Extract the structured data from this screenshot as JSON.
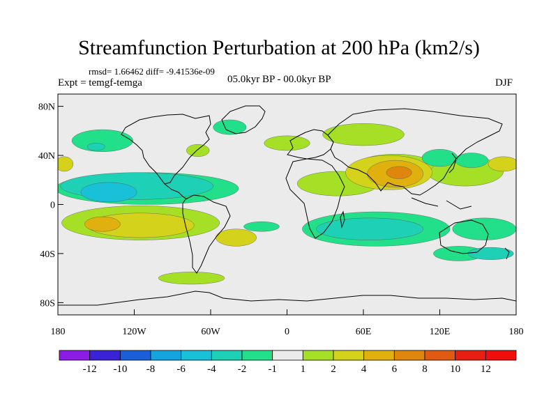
{
  "header": {
    "title": "Streamfunction Perturbation at 200 hPa (km2/s)",
    "stats": "rmsd= 1.66462 diff= -9.41536e-09",
    "experiment": "Expt = temgf-temga",
    "period": "05.0kyr BP - 00.0kyr BP",
    "season": "DJF"
  },
  "axes": {
    "y_ticks": [
      {
        "label": "80N",
        "lat": 80
      },
      {
        "label": "40N",
        "lat": 40
      },
      {
        "label": "0",
        "lat": 0
      },
      {
        "label": "40S",
        "lat": -40
      },
      {
        "label": "80S",
        "lat": -80
      }
    ],
    "x_ticks": [
      {
        "label": "180",
        "lon": -180
      },
      {
        "label": "120W",
        "lon": -120
      },
      {
        "label": "60W",
        "lon": -60
      },
      {
        "label": "0",
        "lon": 0
      },
      {
        "label": "60E",
        "lon": 60
      },
      {
        "label": "120E",
        "lon": 120
      },
      {
        "label": "180",
        "lon": 180
      }
    ]
  },
  "colorbar": {
    "labels": [
      "-12",
      "-10",
      "-8",
      "-6",
      "-4",
      "-2",
      "-1",
      "1",
      "2",
      "4",
      "6",
      "8",
      "10",
      "12"
    ],
    "colors": [
      "#8b1ce6",
      "#3a22d6",
      "#1a5fd8",
      "#14a4e0",
      "#18c0d8",
      "#1dd0b6",
      "#22e08a",
      "#ebebeb",
      "#a6e026",
      "#d4d21a",
      "#e0b00e",
      "#e0860c",
      "#e05a12",
      "#e81e12",
      "#f20d0d"
    ]
  },
  "map_data": {
    "lon_range": [
      -180,
      180
    ],
    "lat_range": [
      -90,
      90
    ],
    "land_color": "#ebebeb",
    "anomaly_regions": [
      {
        "lon": 140,
        "lat": 27,
        "rlon": 30,
        "rlat": 12,
        "color": "#a6e026",
        "value": 2
      },
      {
        "lon": 85,
        "lat": 32,
        "rlon": 30,
        "rlat": 9,
        "color": "#a6e026",
        "value": 2
      },
      {
        "lon": 40,
        "lat": 17,
        "rlon": 32,
        "rlat": 10,
        "color": "#a6e026",
        "value": 2
      },
      {
        "lon": 80,
        "lat": 26,
        "rlon": 34,
        "rlat": 14,
        "color": "#d4d21a",
        "value": 4
      },
      {
        "lon": 85,
        "lat": 25,
        "rlon": 22,
        "rlat": 11,
        "color": "#e0b00e",
        "value": 6
      },
      {
        "lon": 88,
        "lat": 26,
        "rlon": 10,
        "rlat": 5,
        "color": "#e0860c",
        "value": 8
      },
      {
        "lon": 145,
        "lat": 36,
        "rlon": 13,
        "rlat": 6,
        "color": "#22e08a",
        "value": -1
      },
      {
        "lon": 120,
        "lat": 38,
        "rlon": 14,
        "rlat": 7,
        "color": "#22e08a",
        "value": -1
      },
      {
        "lon": 60,
        "lat": 57,
        "rlon": 32,
        "rlat": 9,
        "color": "#a6e026",
        "value": 2
      },
      {
        "lon": 0,
        "lat": 50,
        "rlon": 18,
        "rlat": 6,
        "color": "#a6e026",
        "value": 2
      },
      {
        "lon": -45,
        "lat": 63,
        "rlon": 13,
        "rlat": 6,
        "color": "#22e08a",
        "value": -1
      },
      {
        "lon": -70,
        "lat": 44,
        "rlon": 9,
        "rlat": 5,
        "color": "#a6e026",
        "value": 2
      },
      {
        "lon": -110,
        "lat": 13,
        "rlon": 72,
        "rlat": 13,
        "color": "#22e08a",
        "value": -1
      },
      {
        "lon": -118,
        "lat": 15,
        "rlon": 60,
        "rlat": 11,
        "color": "#1dd0b6",
        "value": -2
      },
      {
        "lon": -140,
        "lat": 10,
        "rlon": 22,
        "rlat": 8,
        "color": "#18c0d8",
        "value": -4
      },
      {
        "lon": -145,
        "lat": 52,
        "rlon": 24,
        "rlat": 9,
        "color": "#22e08a",
        "value": -1
      },
      {
        "lon": -150,
        "lat": 47,
        "rlon": 7,
        "rlat": 3,
        "color": "#1dd0b6",
        "value": -2
      },
      {
        "lon": -115,
        "lat": -15,
        "rlon": 62,
        "rlat": 14,
        "color": "#a6e026",
        "value": 2
      },
      {
        "lon": -115,
        "lat": -17,
        "rlon": 42,
        "rlat": 10,
        "color": "#d4d21a",
        "value": 4
      },
      {
        "lon": -145,
        "lat": -16,
        "rlon": 14,
        "rlat": 6,
        "color": "#e0b00e",
        "value": 6
      },
      {
        "lon": -40,
        "lat": -27,
        "rlon": 16,
        "rlat": 7,
        "color": "#d4d21a",
        "value": 4
      },
      {
        "lon": -75,
        "lat": -60,
        "rlon": 26,
        "rlat": 5,
        "color": "#a6e026",
        "value": 2
      },
      {
        "lon": -20,
        "lat": -18,
        "rlon": 14,
        "rlat": 4,
        "color": "#22e08a",
        "value": -1
      },
      {
        "lon": 70,
        "lat": -20,
        "rlon": 58,
        "rlat": 14,
        "color": "#22e08a",
        "value": -1
      },
      {
        "lon": 65,
        "lat": -20,
        "rlon": 42,
        "rlat": 9,
        "color": "#1dd0b6",
        "value": -2
      },
      {
        "lon": 155,
        "lat": -20,
        "rlon": 25,
        "rlat": 9,
        "color": "#22e08a",
        "value": -1
      },
      {
        "lon": 135,
        "lat": -40,
        "rlon": 20,
        "rlat": 6,
        "color": "#22e08a",
        "value": -1
      },
      {
        "lon": 170,
        "lat": 33,
        "rlon": 12,
        "rlat": 6,
        "color": "#d4d21a",
        "value": 4
      },
      {
        "lon": -175,
        "lat": 33,
        "rlon": 7,
        "rlat": 6,
        "color": "#d4d21a",
        "value": 4
      },
      {
        "lon": 160,
        "lat": -40,
        "rlon": 18,
        "rlat": 5,
        "color": "#1dd0b6",
        "value": -2
      }
    ]
  }
}
